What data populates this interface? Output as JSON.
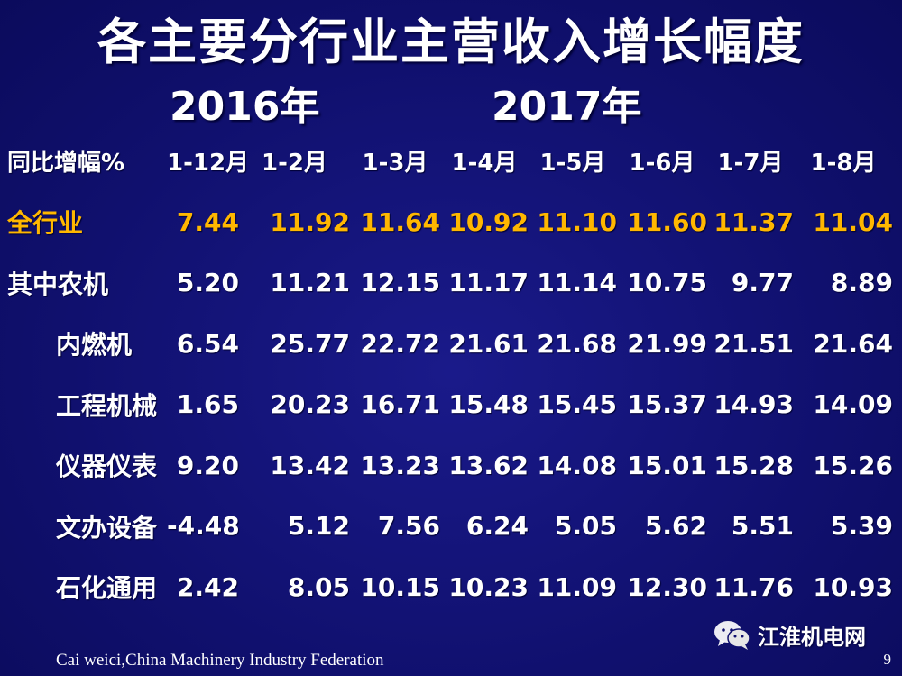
{
  "slide": {
    "title": "各主要分行业主营收入增长幅度",
    "year_2016": "2016年",
    "year_2017": "2017年",
    "footer_credit": "Cai weici,China Machinery Industry Federation",
    "page_number": "9",
    "watermark_text": "江淮机电网",
    "highlight_color": "#ffb700"
  },
  "table": {
    "corner_label": "同比增幅%",
    "columns": [
      "1-12月",
      "1-2月",
      "1-3月",
      "1-4月",
      "1-5月",
      "1-6月",
      "1-7月",
      "1-8月"
    ],
    "rows": [
      {
        "label": "全行业",
        "values": [
          "7.44",
          "11.92",
          "11.64",
          "10.92",
          "11.10",
          "11.60",
          "11.37",
          "11.04"
        ]
      },
      {
        "label": "其中农机",
        "values": [
          "5.20",
          "11.21",
          "12.15",
          "11.17",
          "11.14",
          "10.75",
          "9.77",
          "8.89"
        ]
      },
      {
        "label": "内燃机",
        "values": [
          "6.54",
          "25.77",
          "22.72",
          "21.61",
          "21.68",
          "21.99",
          "21.51",
          "21.64"
        ]
      },
      {
        "label": "工程机械",
        "values": [
          "1.65",
          "20.23",
          "16.71",
          "15.48",
          "15.45",
          "15.37",
          "14.93",
          "14.09"
        ]
      },
      {
        "label": "仪器仪表",
        "values": [
          "9.20",
          "13.42",
          "13.23",
          "13.62",
          "14.08",
          "15.01",
          "15.28",
          "15.26"
        ]
      },
      {
        "label": "文办设备",
        "values": [
          "-4.48",
          "5.12",
          "7.56",
          "6.24",
          "5.05",
          "5.62",
          "5.51",
          "5.39"
        ]
      },
      {
        "label": "石化通用",
        "values": [
          "2.42",
          "8.05",
          "10.15",
          "10.23",
          "11.09",
          "12.30",
          "11.76",
          "10.93"
        ]
      }
    ]
  }
}
